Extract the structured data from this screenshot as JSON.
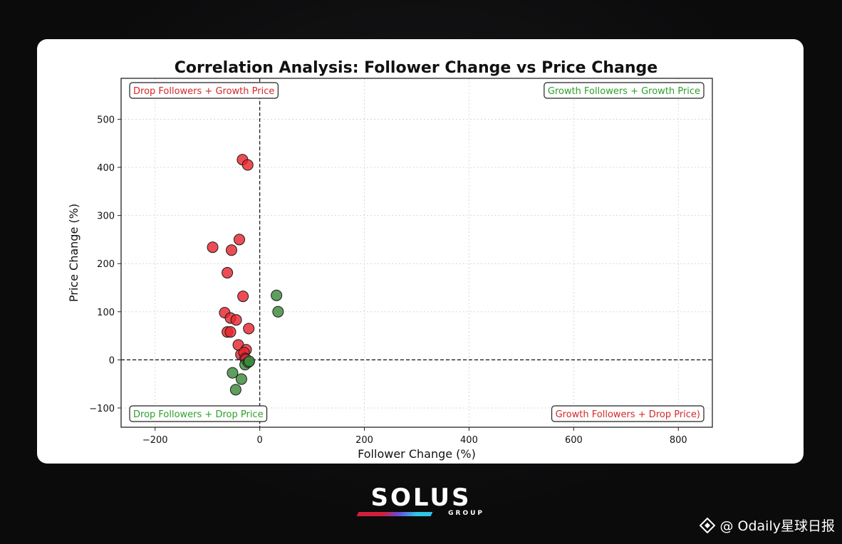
{
  "chart_data": {
    "type": "scatter",
    "title": "Correlation Analysis: Follower Change vs Price Change",
    "xlabel": "Follower Change (%)",
    "ylabel": "Price Change (%)",
    "xlim": [
      -265,
      865
    ],
    "ylim": [
      -140,
      585
    ],
    "xticks": [
      -200,
      0,
      200,
      400,
      600,
      800
    ],
    "yticks": [
      -100,
      0,
      100,
      200,
      300,
      400,
      500
    ],
    "grid": true,
    "reference_lines": {
      "x": 0,
      "y": 0,
      "style": "dashed"
    },
    "quadrant_labels": [
      {
        "text": "Drop Followers + Growth Price",
        "position": "top-left",
        "color": "#d62728"
      },
      {
        "text": "Growth Followers + Growth Price",
        "position": "top-right",
        "color": "#2ca02c"
      },
      {
        "text": "Drop Followers + Drop Price",
        "position": "bottom-left",
        "color": "#2ca02c"
      },
      {
        "text": "Growth Followers + Drop Price)",
        "position": "bottom-right",
        "color": "#d62728"
      }
    ],
    "series": [
      {
        "color": "#e8262e",
        "points": [
          [
            -33,
            416
          ],
          [
            -23,
            405
          ],
          [
            -90,
            234
          ],
          [
            -39,
            250
          ],
          [
            -54,
            228
          ],
          [
            -62,
            181
          ],
          [
            -32,
            132
          ],
          [
            -67,
            98
          ],
          [
            -56,
            87
          ],
          [
            -45,
            83
          ],
          [
            -62,
            58
          ],
          [
            -56,
            58
          ],
          [
            -21,
            65
          ],
          [
            -41,
            31
          ],
          [
            -26,
            21
          ],
          [
            -36,
            11
          ],
          [
            -30,
            15
          ],
          [
            -28,
            3
          ],
          [
            -26,
            1
          ]
        ]
      },
      {
        "color": "#3a8a3a",
        "points": [
          [
            32,
            134
          ],
          [
            35,
            100
          ],
          [
            -52,
            -27
          ],
          [
            -35,
            -40
          ],
          [
            -46,
            -62
          ],
          [
            -28,
            -10
          ],
          [
            -22,
            -5
          ],
          [
            -20,
            -3
          ]
        ]
      }
    ]
  },
  "brand": {
    "name": "SOLUS",
    "sub": "GROUP"
  },
  "watermark": {
    "text": "@ Odaily星球日报"
  }
}
